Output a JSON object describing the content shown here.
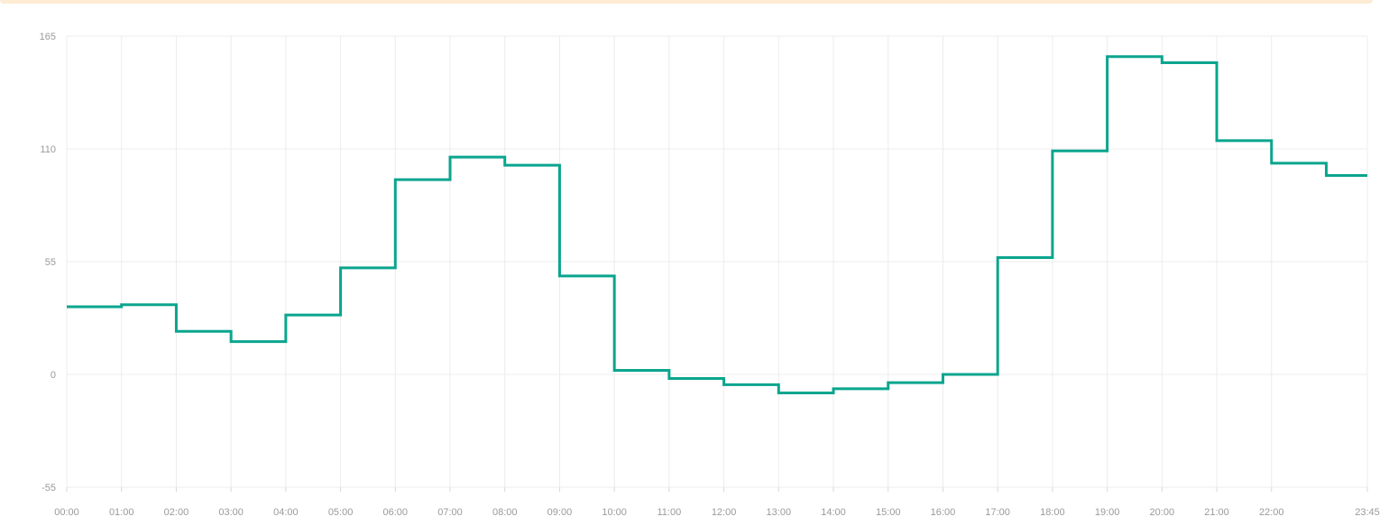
{
  "chart_data": {
    "type": "line",
    "step": true,
    "title": "",
    "xlabel": "",
    "ylabel": "",
    "line_color": "#0aa58e",
    "ylim": [
      -55,
      165
    ],
    "y_ticks": [
      "165",
      "110",
      "55",
      "0",
      "-55"
    ],
    "x_tick_labels": [
      "00:00",
      "01:00",
      "02:00",
      "03:00",
      "04:00",
      "05:00",
      "06:00",
      "07:00",
      "08:00",
      "09:00",
      "10:00",
      "11:00",
      "12:00",
      "13:00",
      "14:00",
      "15:00",
      "16:00",
      "17:00",
      "18:00",
      "19:00",
      "20:00",
      "21:00",
      "22:00",
      "23:45"
    ],
    "x": [
      "00:00",
      "01:00",
      "02:00",
      "03:00",
      "04:00",
      "05:00",
      "06:00",
      "07:00",
      "08:00",
      "09:00",
      "10:00",
      "11:00",
      "12:00",
      "13:00",
      "14:00",
      "15:00",
      "16:00",
      "17:00",
      "18:00",
      "19:00",
      "20:00",
      "21:00",
      "22:00",
      "23:00",
      "23:45"
    ],
    "values": [
      33,
      34,
      21,
      16,
      29,
      52,
      95,
      106,
      102,
      48,
      2,
      -2,
      -5,
      -9,
      -7,
      -4,
      0,
      57,
      109,
      155,
      152,
      114,
      103,
      97,
      97
    ],
    "grid": true
  }
}
